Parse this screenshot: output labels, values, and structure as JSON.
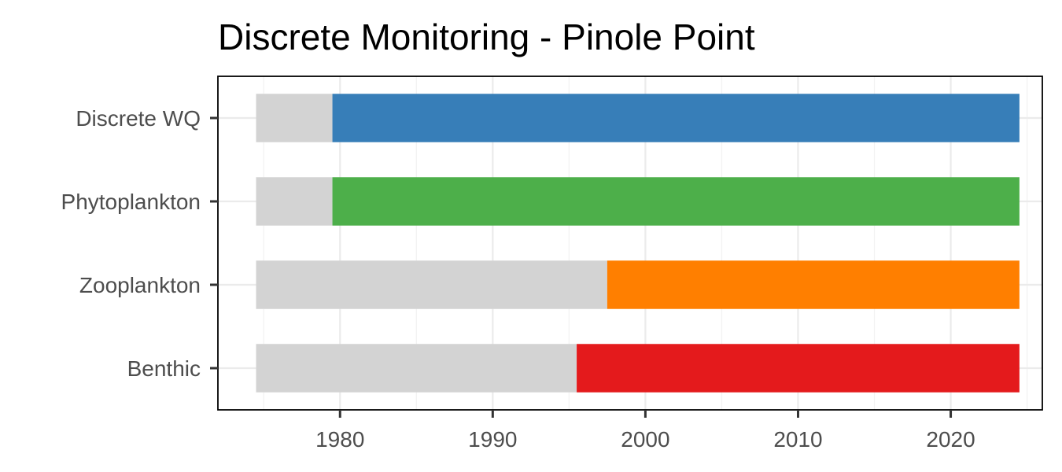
{
  "chart_data": {
    "type": "bar",
    "orientation": "horizontal",
    "title": "Discrete Monitoring - Pinole Point",
    "xlabel": "",
    "ylabel": "",
    "xlim": [
      1972,
      2026
    ],
    "xticks": [
      1980,
      1990,
      2000,
      2010,
      2020
    ],
    "grid": true,
    "categories": [
      "Discrete WQ",
      "Phytoplankton",
      "Zooplankton",
      "Benthic"
    ],
    "series": [
      {
        "role": "full period",
        "color": "#d3d3d3",
        "ranges": [
          [
            1974.5,
            1979.5
          ],
          [
            1974.5,
            1979.5
          ],
          [
            1974.5,
            1997.5
          ],
          [
            1974.5,
            1995.5
          ]
        ]
      },
      {
        "role": "data record",
        "colors": [
          "#377eb8",
          "#4daf4a",
          "#ff7f00",
          "#e41a1c"
        ],
        "ranges": [
          [
            1979.5,
            2024.5
          ],
          [
            1979.5,
            2024.5
          ],
          [
            1997.5,
            2024.5
          ],
          [
            1995.5,
            2024.5
          ]
        ]
      }
    ]
  }
}
